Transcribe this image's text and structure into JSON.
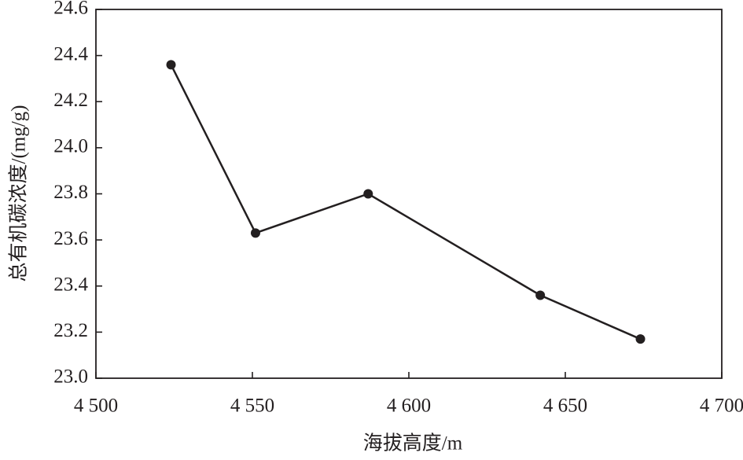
{
  "chart_data": {
    "type": "line",
    "x_label": "海拔高度/m",
    "y_label": "总有机碳浓度/(mg/g)",
    "x": [
      4524,
      4551,
      4587,
      4642,
      4674
    ],
    "values": [
      24.36,
      23.63,
      23.8,
      23.36,
      23.17
    ],
    "color": "#231f20",
    "xlim": [
      4500,
      4700
    ],
    "xticks": [
      {
        "value": 4500,
        "label": "4 500"
      },
      {
        "value": 4550,
        "label": "4 550"
      },
      {
        "value": 4600,
        "label": "4 600"
      },
      {
        "value": 4650,
        "label": "4 650"
      },
      {
        "value": 4700,
        "label": "4 700"
      }
    ],
    "ylim": [
      23.0,
      24.6
    ],
    "yticks": [
      {
        "value": 23,
        "label": "23.0"
      },
      23.2,
      23.4,
      23.6,
      23.8,
      {
        "value": 24,
        "label": "24.0"
      },
      24.2,
      24.4,
      24.6
    ],
    "grid": false
  }
}
